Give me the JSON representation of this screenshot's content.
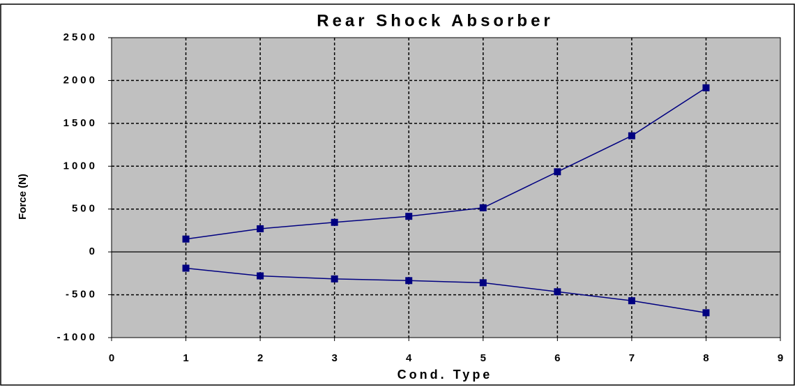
{
  "chart_data": {
    "type": "line",
    "title": "Rear Shock Absorber",
    "x_label": "Cond. Type",
    "y_label": "Force (N)",
    "x": [
      1,
      2,
      3,
      4,
      5,
      6,
      7,
      8
    ],
    "series": [
      {
        "color": "#000080",
        "values": [
          150,
          270,
          345,
          415,
          515,
          935,
          1355,
          1915
        ]
      },
      {
        "color": "#000080",
        "values": [
          -190,
          -280,
          -315,
          -335,
          -360,
          -465,
          -570,
          -710
        ]
      }
    ],
    "xlim": [
      0,
      9
    ],
    "xticks": [
      0,
      1,
      2,
      3,
      4,
      5,
      6,
      7,
      8,
      9
    ],
    "ylim": [
      -1000,
      2500
    ],
    "yticks": [
      -1000,
      -500,
      0,
      500,
      1000,
      1500,
      2000,
      2500
    ],
    "grid": true,
    "plot_background": "#c0c0c0"
  }
}
